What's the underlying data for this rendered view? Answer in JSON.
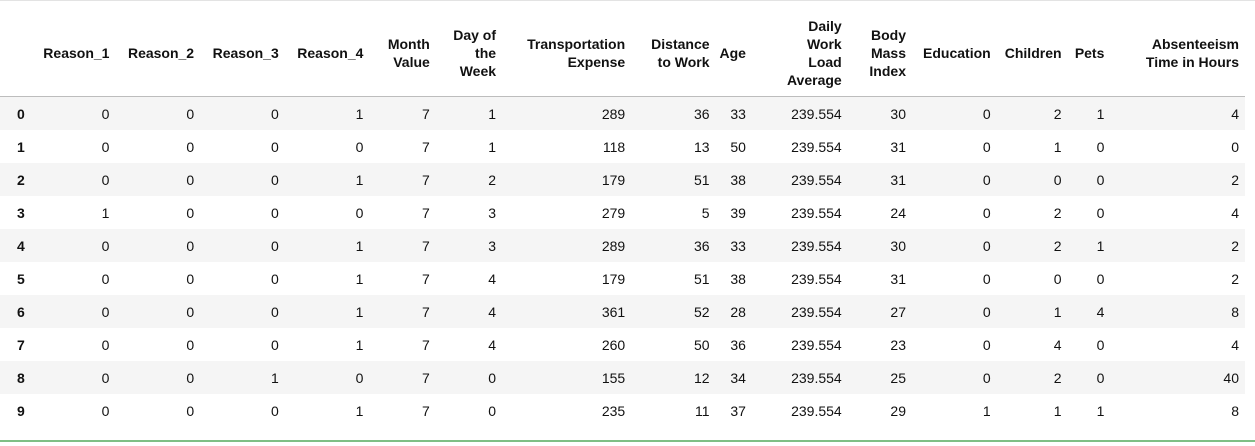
{
  "table": {
    "columns": [
      "Reason_1",
      "Reason_2",
      "Reason_3",
      "Reason_4",
      "Month Value",
      "Day of the Week",
      "Transportation Expense",
      "Distance to Work",
      "Age",
      "Daily Work Load Average",
      "Body Mass Index",
      "Education",
      "Children",
      "Pets",
      "Absenteeism Time in Hours"
    ],
    "header_lines": [
      [
        "Reason_1"
      ],
      [
        "Reason_2"
      ],
      [
        "Reason_3"
      ],
      [
        "Reason_4"
      ],
      [
        "Month",
        "Value"
      ],
      [
        "Day of",
        "the",
        "Week"
      ],
      [
        "Transportation",
        "Expense"
      ],
      [
        "Distance",
        "to Work"
      ],
      [
        "Age"
      ],
      [
        "Daily",
        "Work",
        "Load",
        "Average"
      ],
      [
        "Body",
        "Mass",
        "Index"
      ],
      [
        "Education"
      ],
      [
        "Children"
      ],
      [
        "Pets"
      ],
      [
        "Absenteeism",
        "Time in Hours"
      ]
    ],
    "rows": [
      {
        "index": "0",
        "values": [
          "0",
          "0",
          "0",
          "1",
          "7",
          "1",
          "289",
          "36",
          "33",
          "239.554",
          "30",
          "0",
          "2",
          "1",
          "4"
        ]
      },
      {
        "index": "1",
        "values": [
          "0",
          "0",
          "0",
          "0",
          "7",
          "1",
          "118",
          "13",
          "50",
          "239.554",
          "31",
          "0",
          "1",
          "0",
          "0"
        ]
      },
      {
        "index": "2",
        "values": [
          "0",
          "0",
          "0",
          "1",
          "7",
          "2",
          "179",
          "51",
          "38",
          "239.554",
          "31",
          "0",
          "0",
          "0",
          "2"
        ]
      },
      {
        "index": "3",
        "values": [
          "1",
          "0",
          "0",
          "0",
          "7",
          "3",
          "279",
          "5",
          "39",
          "239.554",
          "24",
          "0",
          "2",
          "0",
          "4"
        ]
      },
      {
        "index": "4",
        "values": [
          "0",
          "0",
          "0",
          "1",
          "7",
          "3",
          "289",
          "36",
          "33",
          "239.554",
          "30",
          "0",
          "2",
          "1",
          "2"
        ]
      },
      {
        "index": "5",
        "values": [
          "0",
          "0",
          "0",
          "1",
          "7",
          "4",
          "179",
          "51",
          "38",
          "239.554",
          "31",
          "0",
          "0",
          "0",
          "2"
        ]
      },
      {
        "index": "6",
        "values": [
          "0",
          "0",
          "0",
          "1",
          "7",
          "4",
          "361",
          "52",
          "28",
          "239.554",
          "27",
          "0",
          "1",
          "4",
          "8"
        ]
      },
      {
        "index": "7",
        "values": [
          "0",
          "0",
          "0",
          "1",
          "7",
          "4",
          "260",
          "50",
          "36",
          "239.554",
          "23",
          "0",
          "4",
          "0",
          "4"
        ]
      },
      {
        "index": "8",
        "values": [
          "0",
          "0",
          "1",
          "0",
          "7",
          "0",
          "155",
          "12",
          "34",
          "239.554",
          "25",
          "0",
          "2",
          "0",
          "40"
        ]
      },
      {
        "index": "9",
        "values": [
          "0",
          "0",
          "0",
          "1",
          "7",
          "0",
          "235",
          "11",
          "37",
          "239.554",
          "29",
          "1",
          "1",
          "1",
          "8"
        ]
      }
    ]
  }
}
